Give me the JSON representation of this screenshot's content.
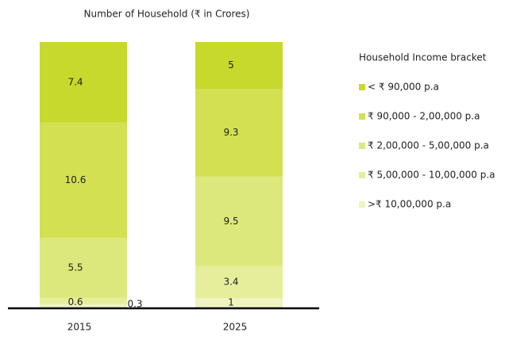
{
  "chart_data": {
    "type": "stacked_bar",
    "title": "Number of Household (₹ in Crores)",
    "categories": [
      "2015",
      "2025"
    ],
    "legend_title": "Household Income bracket",
    "series": [
      {
        "name": ">₹ 10,00,000 p.a",
        "color": "#eef3bf",
        "values": [
          0.3,
          1
        ]
      },
      {
        "name": "₹ 5,00,000 - 10,00,000 p.a",
        "color": "#e6ee9c",
        "values": [
          0.6,
          3.4
        ]
      },
      {
        "name": "₹ 2,00,000 - 5,00,000 p.a",
        "color": "#dde87c",
        "values": [
          5.5,
          9.5
        ]
      },
      {
        "name": "₹ 90,000 - 2,00,000 p.a",
        "color": "#d3e052",
        "values": [
          10.6,
          9.3
        ]
      },
      {
        "name": "< ₹ 90,000 p.a",
        "color": "#c8d92e",
        "values": [
          7.4,
          5
        ]
      }
    ]
  }
}
